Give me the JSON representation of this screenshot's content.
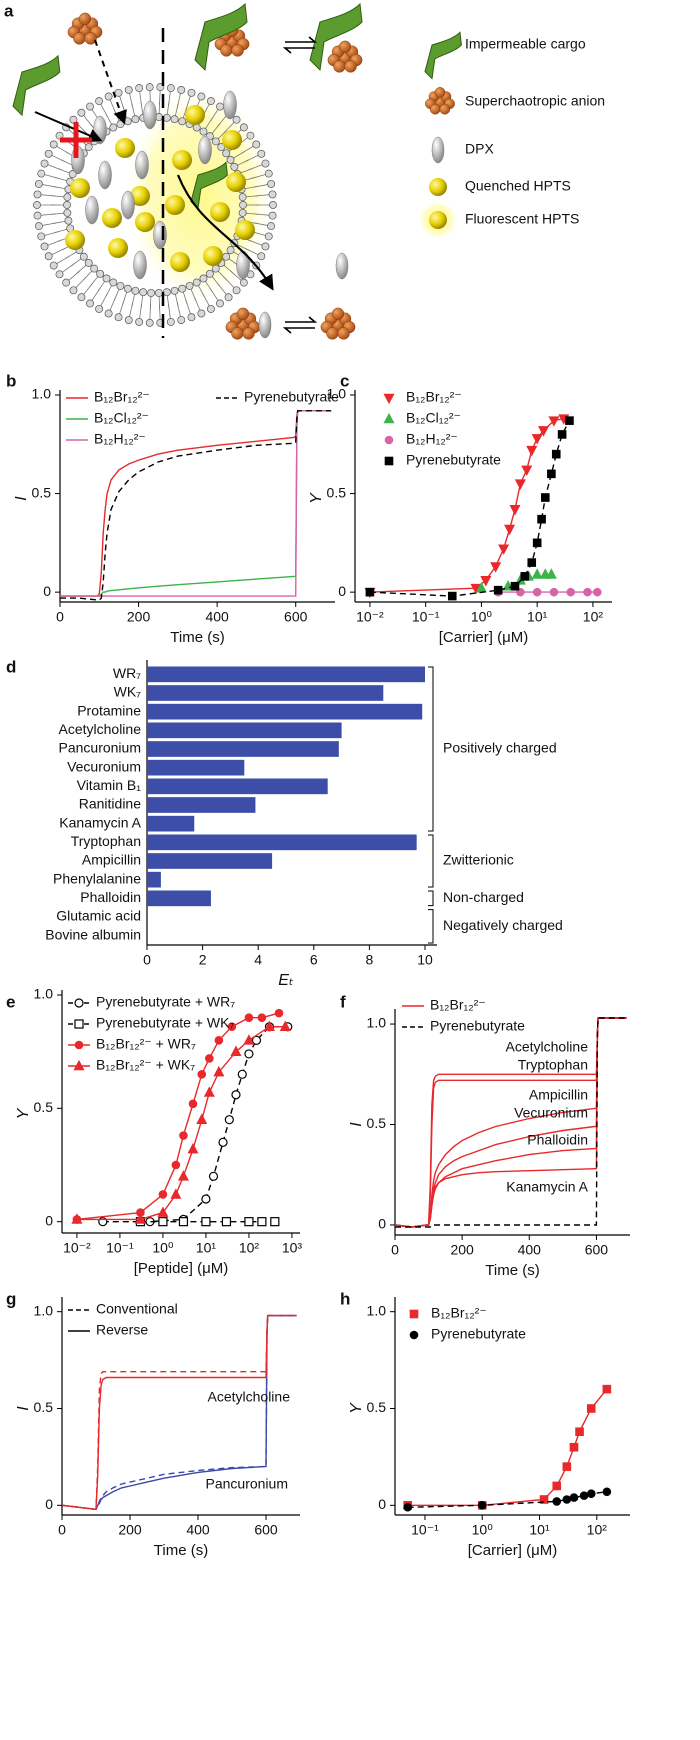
{
  "diagram": {
    "panel": "a",
    "legend": [
      "Impermeable cargo",
      "Superchaotropic anion",
      "DPX",
      "Quenched HPTS",
      "Fluorescent HPTS"
    ]
  },
  "chart_data": [
    {
      "panel": "b",
      "type": "line",
      "xlabel": "Time (s)",
      "ylabel": "I",
      "xlim": [
        0,
        700
      ],
      "ylim": [
        -0.05,
        1.0
      ],
      "xticks": [
        0,
        200,
        400,
        600
      ],
      "yticks": [
        0,
        0.5,
        {
          "value": 1,
          "label": "1.0"
        }
      ],
      "x": [
        0,
        50,
        95,
        100,
        105,
        110,
        115,
        120,
        130,
        150,
        175,
        200,
        250,
        300,
        400,
        500,
        595,
        600,
        603,
        605,
        650,
        690
      ],
      "series": [
        {
          "name": "B₁₂Br₁₂²⁻",
          "color": "#e8282b",
          "dash": false,
          "values": [
            -0.02,
            -0.02,
            -0.02,
            -0.01,
            0.1,
            0.3,
            0.42,
            0.5,
            0.57,
            0.62,
            0.65,
            0.67,
            0.7,
            0.72,
            0.745,
            0.765,
            0.785,
            0.79,
            0.9,
            0.92,
            0.92,
            0.92
          ]
        },
        {
          "name": "B₁₂Cl₁₂²⁻",
          "color": "#3cb44b",
          "dash": false,
          "values": [
            -0.02,
            -0.02,
            -0.02,
            -0.02,
            -0.01,
            0,
            0,
            0.005,
            0.008,
            0.012,
            0.017,
            0.022,
            0.03,
            0.038,
            0.052,
            0.066,
            0.08,
            0.08,
            0.85,
            0.92,
            0.92,
            0.92
          ]
        },
        {
          "name": "B₁₂H₁₂²⁻",
          "color": "#d665a8",
          "dash": false,
          "values": [
            -0.02,
            -0.02,
            -0.02,
            -0.02,
            -0.02,
            -0.02,
            -0.02,
            -0.02,
            -0.02,
            -0.02,
            -0.02,
            -0.02,
            -0.02,
            -0.02,
            -0.02,
            -0.02,
            -0.02,
            -0.02,
            0.85,
            0.92,
            0.92,
            0.92
          ]
        },
        {
          "name": "Pyrenebutyrate",
          "color": "#000000",
          "dash": true,
          "values": [
            -0.03,
            -0.03,
            -0.04,
            -0.04,
            -0.03,
            0.05,
            0.2,
            0.3,
            0.42,
            0.51,
            0.57,
            0.61,
            0.66,
            0.69,
            0.72,
            0.745,
            0.755,
            0.76,
            0.88,
            0.92,
            0.92,
            0.92
          ]
        }
      ]
    },
    {
      "panel": "c",
      "type": "scatter",
      "log_x": true,
      "xlabel": "[Carrier] (μM)",
      "ylabel": "Y",
      "xlim": [
        0.0054,
        220
      ],
      "ylim": [
        -0.05,
        1.0
      ],
      "xticks": [
        {
          "value": 0.01,
          "label": "10⁻²"
        },
        {
          "value": 0.1,
          "label": "10⁻¹"
        },
        {
          "value": 1,
          "label": "10⁰"
        },
        {
          "value": 10,
          "label": "10¹"
        },
        {
          "value": 100,
          "label": "10²"
        }
      ],
      "yticks": [
        0,
        0.5,
        {
          "value": 1,
          "label": "1.0"
        }
      ],
      "series": [
        {
          "name": "B₁₂Br₁₂²⁻",
          "color": "#e8282b",
          "marker": "triangle-down",
          "open": false,
          "line": "solid",
          "x": [
            0.01,
            0.8,
            1.2,
            1.8,
            2.5,
            3.2,
            4,
            5,
            6.5,
            8,
            10,
            13,
            20,
            30
          ],
          "values": [
            0,
            0.02,
            0.06,
            0.13,
            0.22,
            0.32,
            0.42,
            0.55,
            0.62,
            0.72,
            0.78,
            0.82,
            0.87,
            0.88
          ]
        },
        {
          "name": "B₁₂Cl₁₂²⁻",
          "color": "#3cb44b",
          "marker": "triangle-up",
          "open": false,
          "line": "none",
          "x": [
            1,
            3,
            5,
            7,
            10,
            14,
            18
          ],
          "values": [
            0.02,
            0.03,
            0.06,
            0.08,
            0.09,
            0.09,
            0.09
          ]
        },
        {
          "name": "B₁₂H₁₂²⁻",
          "color": "#d665a8",
          "marker": "circle",
          "open": false,
          "line": "solid",
          "x": [
            2,
            5,
            10,
            20,
            40,
            80,
            120
          ],
          "values": [
            0,
            0,
            0,
            0,
            0,
            0,
            0
          ]
        },
        {
          "name": "Pyrenebutyrate",
          "color": "#000000",
          "marker": "square",
          "open": false,
          "line": "dashed",
          "x": [
            0.01,
            0.3,
            2,
            4,
            6,
            8,
            10,
            12,
            14,
            18,
            22,
            28,
            38
          ],
          "values": [
            0,
            -0.02,
            0.01,
            0.03,
            0.08,
            0.15,
            0.25,
            0.37,
            0.48,
            0.6,
            0.7,
            0.8,
            0.87
          ]
        }
      ]
    },
    {
      "panel": "d",
      "type": "bar",
      "orientation": "horizontal",
      "xlabel": "Eₜ",
      "color": "#3d4ea8",
      "xlim": [
        0,
        10
      ],
      "xticks": [
        0,
        2,
        4,
        6,
        8,
        10
      ],
      "categories": [
        "WR₇",
        "WK₇",
        "Protamine",
        "Acetylcholine",
        "Pancuronium",
        "Vecuronium",
        "Vitamin B₁",
        "Ranitidine",
        "Kanamycin A",
        "Tryptophan",
        "Ampicillin",
        "Phenylalanine",
        "Phalloidin",
        "Glutamic acid",
        "Bovine albumin"
      ],
      "values": [
        10,
        8.5,
        9.9,
        7,
        6.9,
        3.5,
        6.5,
        3.9,
        1.7,
        9.7,
        4.5,
        0.5,
        2.3,
        0,
        0
      ],
      "groups": [
        "Positively charged",
        "Zwitterionic",
        "Non-charged",
        "Negatively charged"
      ]
    },
    {
      "panel": "e",
      "type": "scatter",
      "log_x": true,
      "xlabel": "[Peptide] (μM)",
      "ylabel": "Y",
      "xlim": [
        0.0045,
        1540
      ],
      "ylim": [
        -0.05,
        1.0
      ],
      "xticks": [
        {
          "value": 0.01,
          "label": "10⁻²"
        },
        {
          "value": 0.1,
          "label": "10⁻¹"
        },
        {
          "value": 1,
          "label": "10⁰"
        },
        {
          "value": 10,
          "label": "10¹"
        },
        {
          "value": 100,
          "label": "10²"
        },
        {
          "value": 1000,
          "label": "10³"
        }
      ],
      "yticks": [
        0,
        0.5,
        {
          "value": 1,
          "label": "1.0"
        }
      ],
      "series": [
        {
          "name": "Pyrenebutyrate + WR₇",
          "color": "#000000",
          "marker": "circle",
          "open": true,
          "line": "dashed",
          "x": [
            0.04,
            0.5,
            3,
            10,
            15,
            25,
            35,
            50,
            70,
            100,
            150,
            300,
            800
          ],
          "values": [
            0,
            0,
            0.01,
            0.1,
            0.2,
            0.35,
            0.45,
            0.56,
            0.65,
            0.74,
            0.8,
            0.86,
            0.86
          ]
        },
        {
          "name": "Pyrenebutyrate + WK₇",
          "color": "#000000",
          "marker": "square",
          "open": true,
          "line": "dashed",
          "x": [
            0.3,
            1,
            3,
            10,
            30,
            100,
            200,
            400
          ],
          "values": [
            0,
            0,
            0,
            0,
            0,
            0,
            0,
            0
          ]
        },
        {
          "name": "B₁₂Br₁₂²⁻ + WR₇",
          "color": "#e8282b",
          "marker": "circle",
          "open": false,
          "line": "solid",
          "x": [
            0.01,
            0.3,
            1,
            2,
            3,
            5,
            8,
            12,
            20,
            40,
            100,
            200,
            500
          ],
          "values": [
            0.01,
            0.04,
            0.12,
            0.25,
            0.38,
            0.52,
            0.65,
            0.72,
            0.8,
            0.86,
            0.9,
            0.9,
            0.92
          ]
        },
        {
          "name": "B₁₂Br₁₂²⁻ + WK₇",
          "color": "#e8282b",
          "marker": "triangle-up",
          "open": false,
          "line": "solid",
          "x": [
            0.01,
            0.3,
            1,
            2,
            3,
            5,
            8,
            12,
            20,
            50,
            100,
            300,
            700
          ],
          "values": [
            0.01,
            0.01,
            0.04,
            0.12,
            0.2,
            0.32,
            0.45,
            0.57,
            0.66,
            0.75,
            0.8,
            0.86,
            0.86
          ]
        }
      ]
    },
    {
      "panel": "f",
      "type": "line",
      "xlabel": "Time (s)",
      "ylabel": "I",
      "xlim": [
        0,
        700
      ],
      "ylim": [
        -0.05,
        1.05
      ],
      "xticks": [
        0,
        200,
        400,
        600
      ],
      "yticks": [
        0,
        0.5,
        {
          "value": 1,
          "label": "1.0"
        }
      ],
      "legend": [
        {
          "label": "B₁₂Br₁₂²⁻",
          "color": "#e8282b",
          "dash": false
        },
        {
          "label": "Pyrenebutyrate",
          "color": "#000000",
          "dash": true
        }
      ],
      "x": [
        0,
        50,
        95,
        100,
        105,
        110,
        115,
        120,
        130,
        150,
        175,
        200,
        250,
        300,
        400,
        500,
        595,
        600,
        603,
        605,
        650,
        690
      ],
      "series": [
        {
          "name": "Acetylcholine",
          "color": "#e8282b",
          "dash": false,
          "values": [
            0,
            -0.01,
            0,
            0,
            0.2,
            0.6,
            0.72,
            0.74,
            0.75,
            0.75,
            0.75,
            0.75,
            0.75,
            0.75,
            0.75,
            0.75,
            0.75,
            0.75,
            0.95,
            1.03,
            1.03,
            1.03
          ]
        },
        {
          "name": "Tryptophan",
          "color": "#e8282b",
          "dash": false,
          "values": [
            0,
            -0.01,
            0,
            0,
            0.15,
            0.5,
            0.68,
            0.71,
            0.72,
            0.72,
            0.72,
            0.72,
            0.72,
            0.72,
            0.72,
            0.72,
            0.72,
            0.72,
            0.95,
            1.03,
            1.03,
            1.03
          ]
        },
        {
          "name": "Ampicillin",
          "color": "#e8282b",
          "dash": false,
          "values": [
            0,
            -0.01,
            0,
            0,
            0.05,
            0.15,
            0.22,
            0.26,
            0.3,
            0.35,
            0.39,
            0.42,
            0.46,
            0.49,
            0.53,
            0.56,
            0.58,
            0.58,
            0.95,
            1.03,
            1.03,
            1.03
          ]
        },
        {
          "name": "Vecuronium",
          "color": "#e8282b",
          "dash": false,
          "values": [
            0,
            -0.01,
            0,
            0,
            0.04,
            0.12,
            0.18,
            0.21,
            0.25,
            0.29,
            0.32,
            0.34,
            0.37,
            0.4,
            0.44,
            0.47,
            0.49,
            0.49,
            0.95,
            1.03,
            1.03,
            1.03
          ]
        },
        {
          "name": "Phalloidin",
          "color": "#e8282b",
          "dash": false,
          "values": [
            0,
            -0.01,
            0,
            0,
            0.03,
            0.1,
            0.15,
            0.18,
            0.21,
            0.24,
            0.26,
            0.28,
            0.3,
            0.32,
            0.35,
            0.37,
            0.38,
            0.38,
            0.95,
            1.03,
            1.03,
            1.03
          ]
        },
        {
          "name": "Kanamycin A",
          "color": "#e8282b",
          "dash": false,
          "values": [
            0,
            -0.01,
            0,
            0,
            0.03,
            0.1,
            0.16,
            0.19,
            0.21,
            0.23,
            0.24,
            0.25,
            0.26,
            0.265,
            0.27,
            0.275,
            0.28,
            0.28,
            0.95,
            1.03,
            1.03,
            1.03
          ]
        },
        {
          "color": "#000000",
          "dash": true,
          "values": [
            -0.01,
            -0.01,
            -0.01,
            -0.01,
            -0.01,
            0,
            0,
            0,
            0,
            0,
            0,
            0,
            0,
            0,
            0,
            0,
            0,
            0,
            0.95,
            1.03,
            1.03,
            1.03
          ]
        }
      ]
    },
    {
      "panel": "g",
      "type": "line",
      "xlabel": "Time (s)",
      "ylabel": "I",
      "xlim": [
        0,
        700
      ],
      "ylim": [
        -0.05,
        1.05
      ],
      "xticks": [
        0,
        200,
        400,
        600
      ],
      "yticks": [
        0,
        0.5,
        {
          "value": 1,
          "label": "1.0"
        }
      ],
      "legend": [
        {
          "label": "Conventional",
          "color": "#000000",
          "dash": true
        },
        {
          "label": "Reverse",
          "color": "#000000",
          "dash": false
        }
      ],
      "annotations": [
        "Acetylcholine",
        "Pancuronium"
      ],
      "x": [
        0,
        50,
        95,
        100,
        105,
        110,
        115,
        120,
        130,
        150,
        175,
        200,
        250,
        300,
        400,
        500,
        595,
        600,
        603,
        605,
        650,
        690
      ],
      "series": [
        {
          "color": "#3a48a8",
          "dash": true,
          "values": [
            0,
            -0.01,
            -0.02,
            -0.02,
            0,
            0.02,
            0.04,
            0.05,
            0.07,
            0.09,
            0.11,
            0.12,
            0.14,
            0.16,
            0.18,
            0.195,
            0.2,
            0.2,
            0.9,
            0.98,
            0.98,
            0.98
          ]
        },
        {
          "color": "#3a48a8",
          "dash": false,
          "values": [
            0,
            -0.01,
            -0.02,
            -0.02,
            0,
            0.01,
            0.03,
            0.04,
            0.05,
            0.07,
            0.09,
            0.1,
            0.12,
            0.14,
            0.17,
            0.19,
            0.2,
            0.2,
            0.9,
            0.98,
            0.98,
            0.98
          ]
        },
        {
          "color": "#e8282b",
          "dash": true,
          "values": [
            0,
            -0.01,
            -0.02,
            -0.02,
            0.2,
            0.6,
            0.68,
            0.69,
            0.69,
            0.69,
            0.69,
            0.69,
            0.69,
            0.69,
            0.69,
            0.69,
            0.69,
            0.69,
            0.9,
            0.98,
            0.98,
            0.98
          ]
        },
        {
          "color": "#e8282b",
          "dash": false,
          "values": [
            0,
            -0.01,
            -0.02,
            -0.02,
            0.15,
            0.5,
            0.62,
            0.65,
            0.66,
            0.66,
            0.66,
            0.66,
            0.66,
            0.66,
            0.66,
            0.66,
            0.66,
            0.66,
            0.9,
            0.98,
            0.98,
            0.98
          ]
        }
      ]
    },
    {
      "panel": "h",
      "type": "scatter",
      "log_x": true,
      "xlabel": "[Carrier] (μM)",
      "ylabel": "Y",
      "xlim": [
        0.03,
        380
      ],
      "ylim": [
        -0.05,
        1.05
      ],
      "xticks": [
        {
          "value": 0.1,
          "label": "10⁻¹"
        },
        {
          "value": 1,
          "label": "10⁰"
        },
        {
          "value": 10,
          "label": "10¹"
        },
        {
          "value": 100,
          "label": "10²"
        }
      ],
      "yticks": [
        0,
        0.5,
        {
          "value": 1,
          "label": "1.0"
        }
      ],
      "series": [
        {
          "name": "B₁₂Br₁₂²⁻",
          "color": "#e8282b",
          "marker": "square",
          "open": false,
          "line": "solid",
          "x": [
            0.05,
            1,
            12,
            20,
            30,
            40,
            50,
            80,
            150
          ],
          "values": [
            0,
            0,
            0.03,
            0.1,
            0.2,
            0.3,
            0.38,
            0.5,
            0.6
          ]
        },
        {
          "name": "Pyrenebutyrate",
          "color": "#000000",
          "marker": "circle",
          "open": false,
          "line": "dashed",
          "x": [
            0.05,
            1,
            20,
            30,
            40,
            60,
            80,
            150
          ],
          "values": [
            -0.01,
            0,
            0.02,
            0.03,
            0.04,
            0.05,
            0.06,
            0.07
          ]
        }
      ]
    }
  ]
}
